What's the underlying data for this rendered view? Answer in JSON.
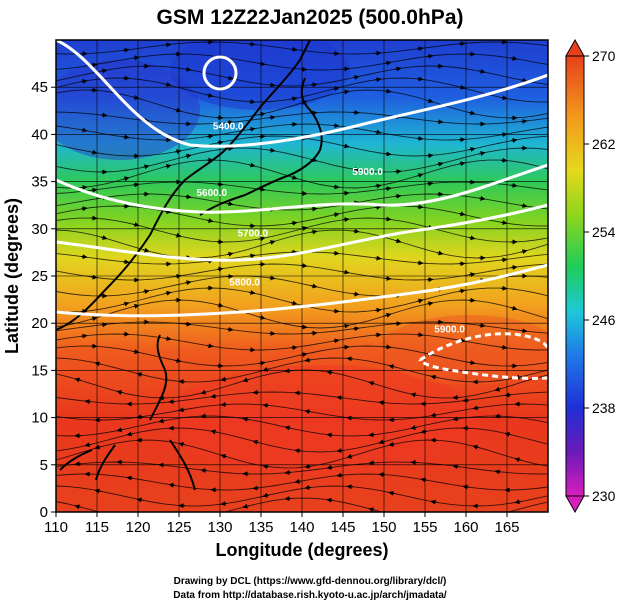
{
  "title": "GSM 12Z22Jan2025 (500.0hPa)",
  "xlabel": "Longitude (degrees)",
  "ylabel": "Latitude  (degrees)",
  "credits": [
    "Drawing by DCL (https://www.gfd-dennou.org/library/dcl/)",
    "Data from http://database.rish.kyoto-u.ac.jp/arch/jmadata/"
  ],
  "map": {
    "lon_range": [
      110,
      170
    ],
    "lat_range": [
      0,
      50
    ],
    "xticks": [
      "110",
      "115",
      "120",
      "125",
      "130",
      "135",
      "140",
      "145",
      "150",
      "155",
      "160",
      "165"
    ],
    "yticks": [
      "0",
      "5",
      "10",
      "15",
      "20",
      "25",
      "30",
      "35",
      "40",
      "45"
    ],
    "grid": true,
    "background_field": "temperature",
    "overlay": "wind streamlines with arrows",
    "coastlines": "black",
    "contour_color": "#ffffff",
    "contours": [
      {
        "label": "5400.0",
        "lon": 131,
        "lat": 40.5
      },
      {
        "label": "5600.0",
        "lon": 129,
        "lat": 33.5
      },
      {
        "label": "5700.0",
        "lon": 134,
        "lat": 29.2
      },
      {
        "label": "5800.0",
        "lon": 133,
        "lat": 24.0
      },
      {
        "label": "5900.0",
        "lon": 148,
        "lat": 35.7
      },
      {
        "label": "5900.0",
        "lon": 158,
        "lat": 19.0
      }
    ],
    "low_center": {
      "lon": 130,
      "lat": 46.5
    }
  },
  "colorbar": {
    "min": 230,
    "max": 270,
    "ticks": [
      "230",
      "238",
      "246",
      "254",
      "262",
      "270"
    ],
    "colors": [
      "#d81fbd",
      "#6b1ab8",
      "#1f2fd6",
      "#1f7ae8",
      "#1ec9d8",
      "#1fcc5a",
      "#8fd61c",
      "#e6d81c",
      "#f29a1c",
      "#e8401c"
    ]
  }
}
